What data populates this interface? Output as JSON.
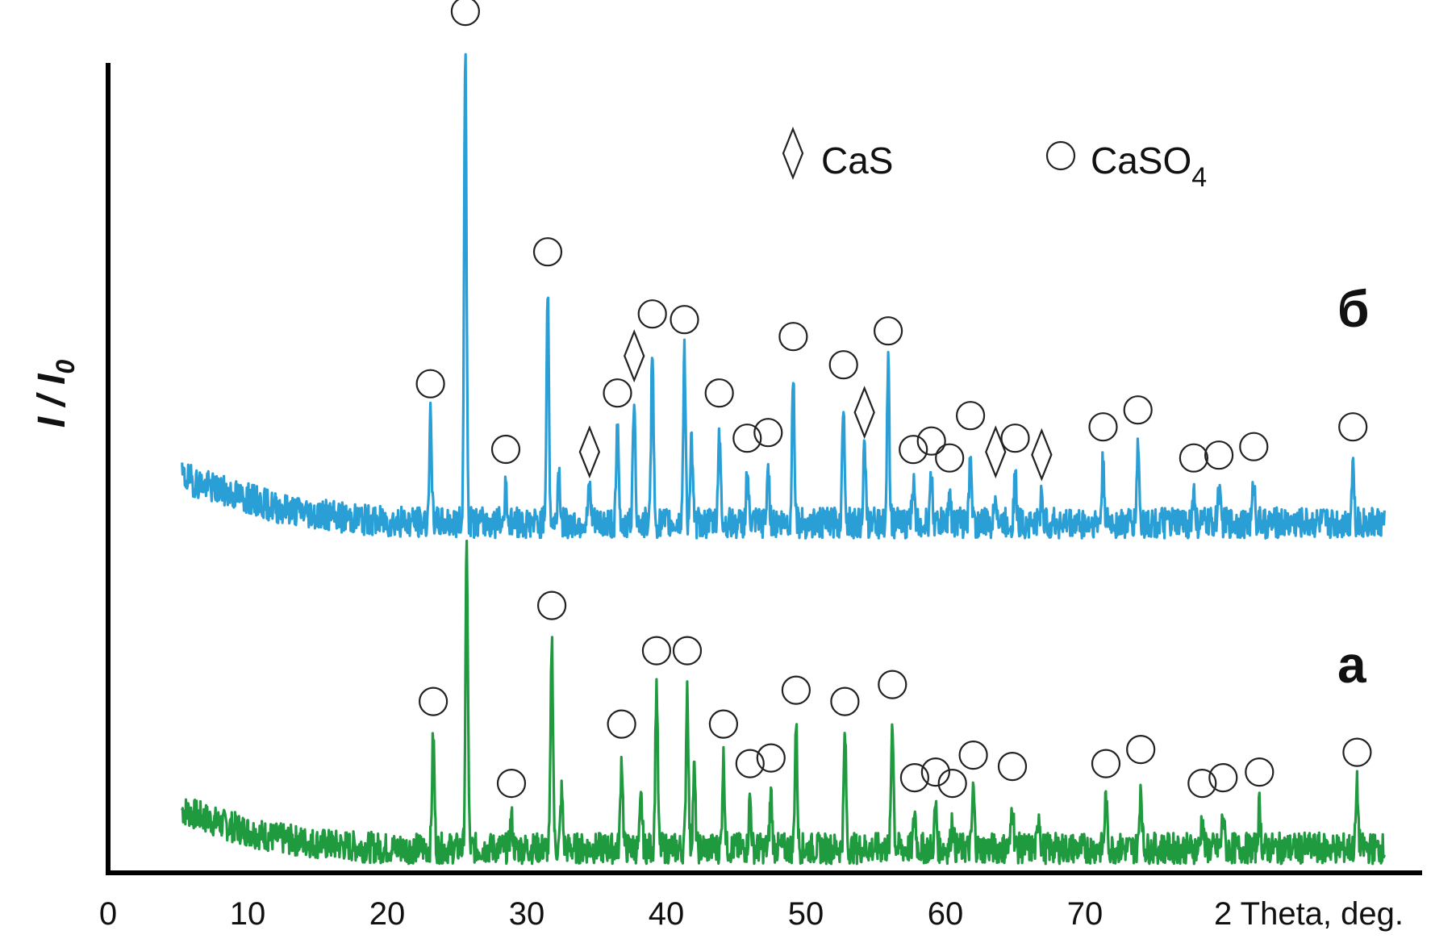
{
  "chart_data": {
    "type": "line",
    "xlabel": "2 Theta, deg.",
    "ylabel_main": "I / I",
    "ylabel_sub": "0",
    "xlim": [
      0,
      94
    ],
    "x_ticks": [
      "0",
      "10",
      "20",
      "30",
      "40",
      "50",
      "60",
      "70"
    ],
    "y_ticks_shown": false,
    "grid": false,
    "legend": {
      "placement": "top-right",
      "entries": [
        {
          "symbol": "diamond",
          "label": "CaS",
          "sub": ""
        },
        {
          "symbol": "circle",
          "label": "CaSO",
          "sub": "4"
        }
      ]
    },
    "series": [
      {
        "name": "а",
        "color": "#1f9a3f",
        "baseline": [
          [
            5.3,
            0.8
          ],
          [
            8,
            0.56
          ],
          [
            12,
            0.3
          ],
          [
            16,
            0.18
          ],
          [
            20,
            0.12
          ],
          [
            30,
            0.12
          ],
          [
            50,
            0.12
          ],
          [
            70,
            0.12
          ],
          [
            91.5,
            0.12
          ]
        ],
        "peaks": [
          {
            "x": 23.3,
            "h": 2.0,
            "marker": "circle"
          },
          {
            "x": 25.7,
            "h": 5.3,
            "marker": "none"
          },
          {
            "x": 28.9,
            "h": 0.55,
            "marker": "circle"
          },
          {
            "x": 31.8,
            "h": 3.7,
            "marker": "circle"
          },
          {
            "x": 32.5,
            "h": 1.0,
            "marker": "none"
          },
          {
            "x": 36.8,
            "h": 1.6,
            "marker": "circle"
          },
          {
            "x": 38.2,
            "h": 0.85,
            "marker": "none"
          },
          {
            "x": 39.3,
            "h": 2.9,
            "marker": "circle"
          },
          {
            "x": 41.5,
            "h": 2.9,
            "marker": "circle"
          },
          {
            "x": 42.0,
            "h": 1.4,
            "marker": "none"
          },
          {
            "x": 44.1,
            "h": 1.6,
            "marker": "circle"
          },
          {
            "x": 46.0,
            "h": 0.9,
            "marker": "circle"
          },
          {
            "x": 47.5,
            "h": 1.0,
            "marker": "circle"
          },
          {
            "x": 49.3,
            "h": 2.2,
            "marker": "circle"
          },
          {
            "x": 52.8,
            "h": 2.0,
            "marker": "circle"
          },
          {
            "x": 56.2,
            "h": 2.3,
            "marker": "circle"
          },
          {
            "x": 57.8,
            "h": 0.65,
            "marker": "circle"
          },
          {
            "x": 59.3,
            "h": 0.75,
            "marker": "circle"
          },
          {
            "x": 60.5,
            "h": 0.55,
            "marker": "circle"
          },
          {
            "x": 62.0,
            "h": 1.05,
            "marker": "circle"
          },
          {
            "x": 64.8,
            "h": 0.85,
            "marker": "circle"
          },
          {
            "x": 66.7,
            "h": 0.65,
            "marker": "none"
          },
          {
            "x": 71.5,
            "h": 0.9,
            "marker": "circle"
          },
          {
            "x": 74.0,
            "h": 1.15,
            "marker": "circle"
          },
          {
            "x": 78.4,
            "h": 0.55,
            "marker": "circle"
          },
          {
            "x": 79.9,
            "h": 0.65,
            "marker": "circle"
          },
          {
            "x": 82.5,
            "h": 0.75,
            "marker": "circle"
          },
          {
            "x": 89.5,
            "h": 1.1,
            "marker": "circle"
          }
        ]
      },
      {
        "name": "б",
        "color": "#2a9fd6",
        "baseline": [
          [
            5.3,
            0.95
          ],
          [
            8,
            0.72
          ],
          [
            12,
            0.42
          ],
          [
            16,
            0.26
          ],
          [
            20,
            0.16
          ],
          [
            30,
            0.14
          ],
          [
            50,
            0.14
          ],
          [
            70,
            0.14
          ],
          [
            91.5,
            0.14
          ]
        ],
        "peaks": [
          {
            "x": 23.1,
            "h": 1.85,
            "marker": "circle"
          },
          {
            "x": 25.6,
            "h": 8.45,
            "marker": "circle"
          },
          {
            "x": 28.5,
            "h": 0.7,
            "marker": "circle"
          },
          {
            "x": 31.5,
            "h": 4.2,
            "marker": "circle"
          },
          {
            "x": 32.3,
            "h": 0.95,
            "marker": "none"
          },
          {
            "x": 34.5,
            "h": 0.6,
            "marker": "diamond"
          },
          {
            "x": 36.5,
            "h": 1.7,
            "marker": "circle"
          },
          {
            "x": 37.7,
            "h": 2.3,
            "marker": "diamond"
          },
          {
            "x": 39.0,
            "h": 3.1,
            "marker": "circle"
          },
          {
            "x": 41.3,
            "h": 3.0,
            "marker": "circle"
          },
          {
            "x": 41.8,
            "h": 1.5,
            "marker": "none"
          },
          {
            "x": 43.8,
            "h": 1.7,
            "marker": "circle"
          },
          {
            "x": 45.8,
            "h": 0.9,
            "marker": "circle"
          },
          {
            "x": 47.3,
            "h": 1.0,
            "marker": "circle"
          },
          {
            "x": 49.1,
            "h": 2.7,
            "marker": "circle"
          },
          {
            "x": 52.7,
            "h": 2.2,
            "marker": "circle"
          },
          {
            "x": 54.2,
            "h": 1.3,
            "marker": "diamond"
          },
          {
            "x": 55.9,
            "h": 2.8,
            "marker": "circle"
          },
          {
            "x": 57.7,
            "h": 0.7,
            "marker": "circle"
          },
          {
            "x": 59.0,
            "h": 0.85,
            "marker": "circle"
          },
          {
            "x": 60.3,
            "h": 0.55,
            "marker": "circle"
          },
          {
            "x": 61.8,
            "h": 1.3,
            "marker": "circle"
          },
          {
            "x": 63.6,
            "h": 0.6,
            "marker": "diamond"
          },
          {
            "x": 65.0,
            "h": 0.9,
            "marker": "circle"
          },
          {
            "x": 66.9,
            "h": 0.55,
            "marker": "diamond"
          },
          {
            "x": 71.3,
            "h": 1.1,
            "marker": "circle"
          },
          {
            "x": 73.8,
            "h": 1.4,
            "marker": "circle"
          },
          {
            "x": 77.8,
            "h": 0.55,
            "marker": "circle"
          },
          {
            "x": 79.6,
            "h": 0.6,
            "marker": "circle"
          },
          {
            "x": 82.1,
            "h": 0.75,
            "marker": "circle"
          },
          {
            "x": 89.2,
            "h": 1.1,
            "marker": "circle"
          }
        ]
      }
    ]
  }
}
